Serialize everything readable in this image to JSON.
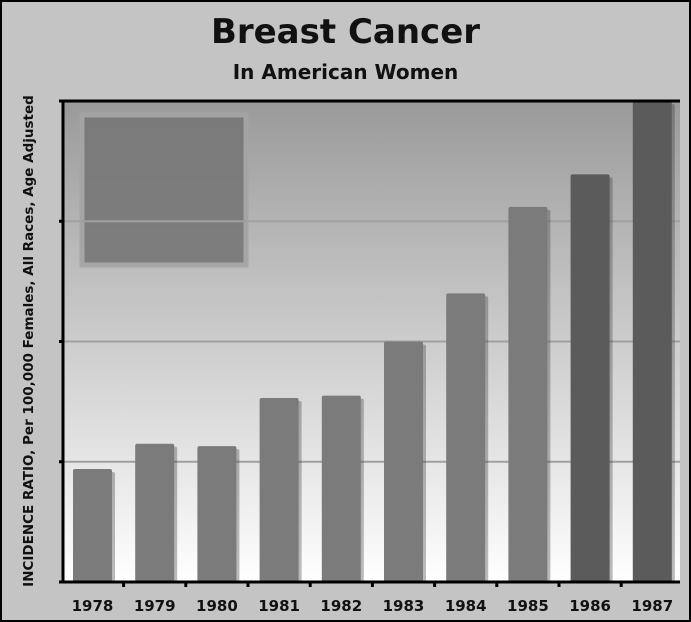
{
  "chart_data": {
    "type": "bar",
    "title": "Breast Cancer",
    "subtitle": "In American Women",
    "ylabel": "INCIDENCE RATIO, Per 100,000 Females, All Races, Age Adjusted",
    "xlabel": "",
    "categories": [
      "1978",
      "1979",
      "1980",
      "1981",
      "1982",
      "1983",
      "1984",
      "1985",
      "1986",
      "1987"
    ],
    "values": [
      94,
      115,
      113,
      153,
      155,
      200,
      240,
      312,
      339,
      400
    ],
    "ylim": [
      0,
      400
    ],
    "grid": true,
    "colors": {
      "bar": "#7b7b7b",
      "bar_dark": "#5b5b5b",
      "frame_bg": "#c4c4c4",
      "plot_top": "#9a9a9a",
      "plot_bottom": "#ffffff"
    }
  }
}
